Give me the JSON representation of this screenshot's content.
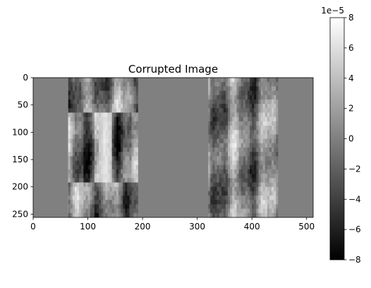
{
  "chart_data": {
    "type": "heatmap",
    "title": "Corrupted Image",
    "colormap": "gray",
    "xlim": [
      0,
      512
    ],
    "ylim": [
      256,
      0
    ],
    "x_ticks": [
      0,
      100,
      200,
      300,
      400,
      500
    ],
    "y_ticks": [
      0,
      50,
      100,
      150,
      200,
      250
    ],
    "grid": false,
    "colorbar": {
      "range": [
        -8,
        8
      ],
      "ticks": [
        -8,
        -6,
        -4,
        -2,
        0,
        2,
        4,
        6,
        8
      ],
      "scale_label": "1e−5"
    },
    "masked_value": 0,
    "regions": [
      {
        "x": [
          0,
          64
        ],
        "y": [
          0,
          256
        ],
        "content": "masked"
      },
      {
        "x": [
          64,
          192
        ],
        "y": [
          0,
          64
        ],
        "content": "texture"
      },
      {
        "x": [
          64,
          192
        ],
        "y": [
          64,
          192
        ],
        "content": "texture",
        "note": "bright vertical band near x 120-140"
      },
      {
        "x": [
          64,
          192
        ],
        "y": [
          192,
          256
        ],
        "content": "texture"
      },
      {
        "x": [
          192,
          320
        ],
        "y": [
          0,
          256
        ],
        "content": "masked"
      },
      {
        "x": [
          320,
          448
        ],
        "y": [
          0,
          256
        ],
        "content": "texture"
      },
      {
        "x": [
          448,
          512
        ],
        "y": [
          0,
          256
        ],
        "content": "masked"
      }
    ]
  }
}
